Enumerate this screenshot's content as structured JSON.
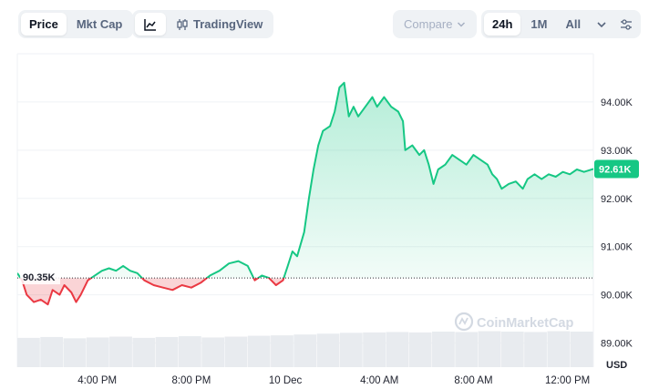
{
  "toolbar": {
    "price_label": "Price",
    "mktcap_label": "Mkt Cap",
    "tradingview_label": "TradingView",
    "compare_label": "Compare",
    "range_24h": "24h",
    "range_1m": "1M",
    "range_all": "All",
    "icons": [
      "line-chart-icon",
      "candlestick-icon",
      "chevron-down-icon",
      "settings-sliders-icon"
    ]
  },
  "colors": {
    "up": "#16c784",
    "down": "#ea3943",
    "badge": "#16c784",
    "grid": "#eff2f5"
  },
  "watermark": "CoinMarketCap",
  "chart_data": {
    "type": "line",
    "y_unit": "USD",
    "ylim": [
      88500,
      95000
    ],
    "y_ticks": [
      {
        "value": 89000,
        "label": "89.00K"
      },
      {
        "value": 90000,
        "label": "90.00K"
      },
      {
        "value": 91000,
        "label": "91.00K"
      },
      {
        "value": 92000,
        "label": "92.00K"
      },
      {
        "value": 93000,
        "label": "93.00K"
      },
      {
        "value": 94000,
        "label": "94.00K"
      }
    ],
    "x_ticks": [
      {
        "hour": 16,
        "label": "4:00 PM"
      },
      {
        "hour": 20,
        "label": "8:00 PM"
      },
      {
        "hour": 24,
        "label": "10 Dec"
      },
      {
        "hour": 28,
        "label": "4:00 AM"
      },
      {
        "hour": 32,
        "label": "8:00 AM"
      },
      {
        "hour": 36,
        "label": "12:00 PM"
      }
    ],
    "x_range_hours": [
      12.6,
      37.1
    ],
    "reference": {
      "value": 90350,
      "label": "90.35K"
    },
    "current": {
      "value": 92610,
      "label": "92.61K"
    },
    "price_series": [
      [
        12.6,
        90450
      ],
      [
        12.8,
        90300
      ],
      [
        13.0,
        90000
      ],
      [
        13.3,
        89850
      ],
      [
        13.6,
        89900
      ],
      [
        13.9,
        89800
      ],
      [
        14.1,
        90100
      ],
      [
        14.4,
        90000
      ],
      [
        14.6,
        90200
      ],
      [
        14.9,
        90050
      ],
      [
        15.1,
        89850
      ],
      [
        15.3,
        90000
      ],
      [
        15.6,
        90300
      ],
      [
        15.9,
        90400
      ],
      [
        16.2,
        90500
      ],
      [
        16.5,
        90550
      ],
      [
        16.8,
        90500
      ],
      [
        17.1,
        90600
      ],
      [
        17.4,
        90500
      ],
      [
        17.7,
        90450
      ],
      [
        18.0,
        90300
      ],
      [
        18.4,
        90200
      ],
      [
        18.8,
        90150
      ],
      [
        19.2,
        90100
      ],
      [
        19.6,
        90200
      ],
      [
        20.0,
        90150
      ],
      [
        20.4,
        90250
      ],
      [
        20.8,
        90400
      ],
      [
        21.2,
        90500
      ],
      [
        21.6,
        90650
      ],
      [
        22.0,
        90700
      ],
      [
        22.4,
        90600
      ],
      [
        22.7,
        90300
      ],
      [
        23.0,
        90400
      ],
      [
        23.3,
        90350
      ],
      [
        23.6,
        90200
      ],
      [
        23.9,
        90300
      ],
      [
        24.1,
        90600
      ],
      [
        24.3,
        90900
      ],
      [
        24.5,
        90800
      ],
      [
        24.8,
        91300
      ],
      [
        25.0,
        92000
      ],
      [
        25.2,
        92600
      ],
      [
        25.4,
        93100
      ],
      [
        25.6,
        93400
      ],
      [
        25.9,
        93500
      ],
      [
        26.1,
        93800
      ],
      [
        26.3,
        94300
      ],
      [
        26.5,
        94400
      ],
      [
        26.7,
        93700
      ],
      [
        26.9,
        93900
      ],
      [
        27.1,
        93700
      ],
      [
        27.4,
        93900
      ],
      [
        27.7,
        94100
      ],
      [
        27.9,
        93900
      ],
      [
        28.2,
        94100
      ],
      [
        28.5,
        93900
      ],
      [
        28.8,
        93800
      ],
      [
        29.0,
        93600
      ],
      [
        29.1,
        93000
      ],
      [
        29.4,
        93100
      ],
      [
        29.7,
        92900
      ],
      [
        29.9,
        93000
      ],
      [
        30.1,
        92700
      ],
      [
        30.3,
        92300
      ],
      [
        30.5,
        92600
      ],
      [
        30.8,
        92700
      ],
      [
        31.1,
        92900
      ],
      [
        31.4,
        92800
      ],
      [
        31.7,
        92700
      ],
      [
        32.0,
        92900
      ],
      [
        32.3,
        92800
      ],
      [
        32.6,
        92700
      ],
      [
        32.8,
        92500
      ],
      [
        33.0,
        92400
      ],
      [
        33.2,
        92200
      ],
      [
        33.5,
        92300
      ],
      [
        33.8,
        92350
      ],
      [
        34.1,
        92200
      ],
      [
        34.3,
        92400
      ],
      [
        34.6,
        92500
      ],
      [
        34.9,
        92400
      ],
      [
        35.2,
        92500
      ],
      [
        35.5,
        92450
      ],
      [
        35.8,
        92550
      ],
      [
        36.1,
        92500
      ],
      [
        36.4,
        92600
      ],
      [
        36.7,
        92550
      ],
      [
        37.1,
        92610
      ]
    ],
    "volume_series": [
      0.7,
      0.72,
      0.69,
      0.71,
      0.73,
      0.7,
      0.72,
      0.74,
      0.71,
      0.73,
      0.75,
      0.76,
      0.78,
      0.8,
      0.82,
      0.83,
      0.84,
      0.83,
      0.85,
      0.84,
      0.86,
      0.85,
      0.84,
      0.86,
      0.85
    ]
  }
}
